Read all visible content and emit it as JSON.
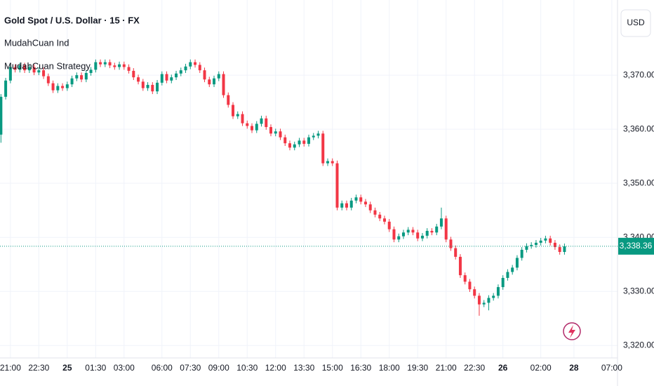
{
  "chart_data": {
    "type": "candlestick",
    "title": "Gold Spot / U.S. Dollar · 15 · FX",
    "indicators": [
      "MudahCuan Ind",
      "MudahCuan Strategy"
    ],
    "currency": "USD",
    "up_color": "#089981",
    "down_color": "#f23645",
    "grid": true,
    "last_price": {
      "value": 3338.36,
      "label": "3,338.36"
    },
    "open": [
      3359,
      3366,
      3369,
      3371.5,
      3371,
      3371.8,
      3370.9,
      3371.5,
      3370.5,
      3370.9,
      3369.8,
      3368.5,
      3367.2,
      3368,
      3367.6,
      3368.3,
      3369.4,
      3370,
      3369.2,
      3370.4,
      3371,
      3372.4,
      3372,
      3372.4,
      3371.8,
      3371.5,
      3372,
      3371.5,
      3370.8,
      3369.6,
      3368.8,
      3367.6,
      3368.2,
      3367,
      3368.6,
      3370.2,
      3369,
      3369.6,
      3370.3,
      3370.9,
      3371.6,
      3372.4,
      3371.9,
      3370.9,
      3369.2,
      3368.3,
      3369.4,
      3370.2,
      3366.3,
      3364.5,
      3362.4,
      3362.8,
      3361.1,
      3360.6,
      3359.8,
      3361,
      3362,
      3360.4,
      3359.2,
      3359.6,
      3358.5,
      3357.4,
      3356.6,
      3357.2,
      3357.9,
      3357.3,
      3358.5,
      3358.8,
      3359.2,
      3353.7,
      3354.1,
      3353.7,
      3345.5,
      3346.3,
      3345.5,
      3346.8,
      3347.4,
      3346.6,
      3346.1,
      3345,
      3344.2,
      3343.5,
      3342.9,
      3341.5,
      3339.6,
      3340.2,
      3340.9,
      3341.4,
      3340.9,
      3339.8,
      3340.3,
      3341.2,
      3340.9,
      3342,
      3343.5,
      3339.6,
      3338,
      3336.4,
      3333,
      3331.8,
      3330.4,
      3329.2,
      3327.6,
      3327.9,
      3328.8,
      3329.2,
      3330.8,
      3332.5,
      3333.6,
      3334.4,
      3336.2,
      3337.7,
      3338.4,
      3338.6,
      3339,
      3339.4,
      3339.8,
      3339,
      3338.2,
      3337.3
    ],
    "high": [
      3366.5,
      3369.5,
      3372,
      3372,
      3372.3,
      3372.3,
      3372,
      3372,
      3371.4,
      3371.4,
      3370.3,
      3369,
      3368.5,
      3368.5,
      3368.8,
      3369.9,
      3370.5,
      3370.5,
      3370.9,
      3371.5,
      3372.9,
      3372.9,
      3372.9,
      3372.9,
      3372.3,
      3372.5,
      3372.5,
      3372,
      3371.3,
      3370.1,
      3369.3,
      3368.7,
      3368.7,
      3369.1,
      3370.7,
      3370.7,
      3370.1,
      3370.8,
      3371.4,
      3372.1,
      3372.9,
      3372.9,
      3372.4,
      3371.4,
      3369.7,
      3369.9,
      3370.7,
      3370.7,
      3366.8,
      3365,
      3363.3,
      3363.3,
      3361.6,
      3361.1,
      3361.5,
      3362.5,
      3362.5,
      3360.9,
      3360.1,
      3360.1,
      3359,
      3357.9,
      3357.7,
      3358.4,
      3358.4,
      3359,
      3359.3,
      3359.7,
      3359.7,
      3354.6,
      3354.6,
      3354.2,
      3346.8,
      3346.8,
      3347.3,
      3347.9,
      3347.9,
      3347.1,
      3346.6,
      3345.5,
      3344.7,
      3344,
      3343.4,
      3342,
      3340.7,
      3341.4,
      3341.9,
      3341.9,
      3341.4,
      3340.8,
      3341.7,
      3341.7,
      3342.5,
      3345.5,
      3344,
      3340.1,
      3338.5,
      3336.9,
      3333.5,
      3332.3,
      3330.9,
      3329.7,
      3328.4,
      3329.3,
      3329.7,
      3331.3,
      3333,
      3334.1,
      3334.9,
      3336.7,
      3338.2,
      3338.9,
      3339.1,
      3339.5,
      3339.9,
      3340.3,
      3340.3,
      3339.5,
      3338.7,
      3338.86
    ],
    "low": [
      3357.5,
      3365.5,
      3368.5,
      3370.5,
      3370.5,
      3370.4,
      3370.4,
      3370,
      3370,
      3369.3,
      3368,
      3366.7,
      3366.7,
      3367.1,
      3367.1,
      3367.8,
      3368.9,
      3368.7,
      3368.7,
      3369.9,
      3370.5,
      3371.5,
      3371.5,
      3371.3,
      3371,
      3371,
      3371,
      3370.3,
      3369.1,
      3368.3,
      3367.1,
      3367.1,
      3366.5,
      3366.5,
      3368.1,
      3368.5,
      3368.5,
      3369.1,
      3369.8,
      3370.4,
      3371.1,
      3371.4,
      3370.4,
      3368.7,
      3367.8,
      3367.8,
      3368.9,
      3365.8,
      3364,
      3361.9,
      3361.9,
      3360.6,
      3360.1,
      3359.3,
      3359.3,
      3360.5,
      3359.9,
      3358.7,
      3358.7,
      3358,
      3356.9,
      3356.1,
      3356.1,
      3356.7,
      3356.8,
      3356.8,
      3358,
      3358.3,
      3353.2,
      3353.2,
      3353.2,
      3345,
      3345,
      3345,
      3345,
      3346.3,
      3346.1,
      3345.6,
      3344.5,
      3343.7,
      3343,
      3342.4,
      3341,
      3339.1,
      3339.1,
      3339.7,
      3340.4,
      3340.4,
      3339.3,
      3339.3,
      3339.8,
      3340.4,
      3340.4,
      3341.5,
      3339.1,
      3337.5,
      3335.9,
      3332.5,
      3331.3,
      3329.9,
      3328.7,
      3325.5,
      3327.1,
      3326.5,
      3328.3,
      3328.7,
      3330.3,
      3332,
      3333.1,
      3333.9,
      3335.7,
      3337.2,
      3337.9,
      3338.1,
      3338.5,
      3338.9,
      3338.5,
      3337.7,
      3336.8,
      3336.8
    ],
    "close": [
      3366,
      3369,
      3371.5,
      3371,
      3371.8,
      3370.9,
      3371.5,
      3370.5,
      3370.9,
      3369.8,
      3368.5,
      3367.2,
      3368,
      3367.6,
      3368.3,
      3369.4,
      3370,
      3369.2,
      3370.4,
      3371,
      3372.4,
      3372,
      3372.4,
      3371.8,
      3371.5,
      3372,
      3371.5,
      3370.8,
      3369.6,
      3368.8,
      3367.6,
      3368.2,
      3367,
      3368.6,
      3370.2,
      3369,
      3369.6,
      3370.3,
      3370.9,
      3371.6,
      3372.4,
      3371.9,
      3370.9,
      3369.2,
      3368.3,
      3369.4,
      3370.2,
      3366.3,
      3364.5,
      3362.4,
      3362.8,
      3361.1,
      3360.6,
      3359.8,
      3361,
      3362,
      3360.4,
      3359.2,
      3359.6,
      3358.5,
      3357.4,
      3356.6,
      3357.2,
      3357.9,
      3357.3,
      3358.5,
      3358.8,
      3359.2,
      3353.7,
      3354.1,
      3353.7,
      3345.5,
      3346.3,
      3345.5,
      3346.8,
      3347.4,
      3346.6,
      3346.1,
      3345,
      3344.2,
      3343.5,
      3342.9,
      3341.5,
      3339.6,
      3340.2,
      3340.9,
      3341.4,
      3340.9,
      3339.8,
      3340.3,
      3341.2,
      3340.9,
      3342,
      3343.5,
      3339.6,
      3338,
      3336.4,
      3333,
      3331.8,
      3330.4,
      3329.2,
      3327.6,
      3327.9,
      3328.8,
      3329.2,
      3330.8,
      3332.5,
      3333.6,
      3334.4,
      3336.2,
      3337.7,
      3338.4,
      3338.6,
      3339,
      3339.4,
      3339.8,
      3339,
      3338.2,
      3337.3,
      3338.36
    ],
    "xlim": [
      -0.2,
      130.2
    ],
    "xticks": [
      {
        "value": 2,
        "label": "21:00"
      },
      {
        "value": 8,
        "label": "22:30"
      },
      {
        "value": 14,
        "label": "25"
      },
      {
        "value": 20,
        "label": "01:30"
      },
      {
        "value": 26,
        "label": "03:00"
      },
      {
        "value": 34,
        "label": "06:00"
      },
      {
        "value": 40,
        "label": "07:30"
      },
      {
        "value": 46,
        "label": "09:00"
      },
      {
        "value": 52,
        "label": "10:30"
      },
      {
        "value": 58,
        "label": "12:00"
      },
      {
        "value": 64,
        "label": "13:30"
      },
      {
        "value": 70,
        "label": "15:00"
      },
      {
        "value": 76,
        "label": "16:30"
      },
      {
        "value": 82,
        "label": "18:00"
      },
      {
        "value": 88,
        "label": "19:30"
      },
      {
        "value": 94,
        "label": "21:00"
      },
      {
        "value": 100,
        "label": "22:30"
      },
      {
        "value": 106,
        "label": "26"
      },
      {
        "value": 114,
        "label": "02:00"
      },
      {
        "value": 121,
        "label": "28"
      },
      {
        "value": 129,
        "label": "07:00"
      }
    ],
    "ylim": [
      3317.7,
      3383.9
    ],
    "yticks": [
      {
        "value": 3320,
        "label": "3,320.00"
      },
      {
        "value": 3330,
        "label": "3,330.00"
      },
      {
        "value": 3340,
        "label": "3,340.00"
      },
      {
        "value": 3350,
        "label": "3,350.00"
      },
      {
        "value": 3360,
        "label": "3,360.00"
      },
      {
        "value": 3370,
        "label": "3,370.00"
      }
    ]
  }
}
